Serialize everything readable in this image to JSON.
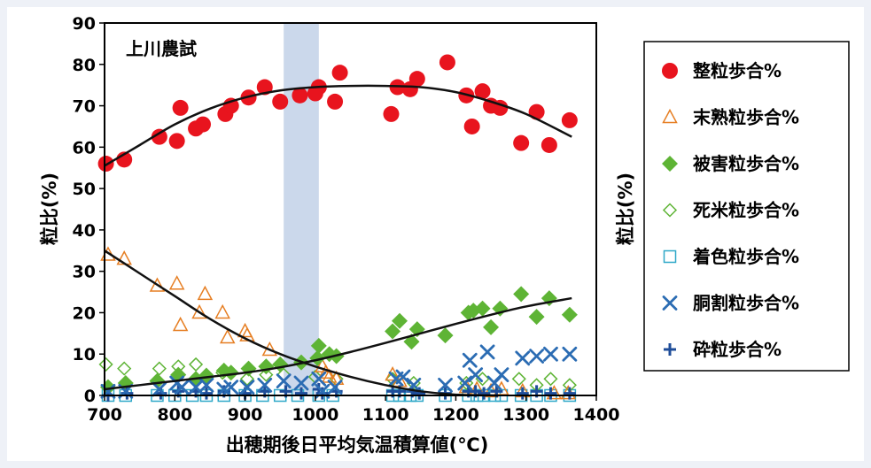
{
  "chart_data": {
    "type": "scatter",
    "annotation": "上川農試",
    "xlabel": "出穂期後日平均気温積算値(℃)",
    "ylabel": "粒比(%)",
    "ylabel_right": "粒比(%)",
    "xlim": [
      700,
      1400
    ],
    "ylim": [
      0,
      90
    ],
    "x_ticks": [
      700,
      800,
      900,
      1000,
      1100,
      1200,
      1300,
      1400
    ],
    "y_ticks": [
      0,
      10,
      20,
      30,
      40,
      50,
      60,
      70,
      80,
      90
    ],
    "highlight_band": [
      955,
      1005
    ],
    "series": [
      {
        "name": "整粒歩合%",
        "marker": "circle",
        "color": "#e8141e",
        "points": [
          [
            702,
            56
          ],
          [
            728,
            57
          ],
          [
            778,
            62.5
          ],
          [
            803,
            61.5
          ],
          [
            808,
            69.5
          ],
          [
            830,
            64.5
          ],
          [
            840,
            65.5
          ],
          [
            872,
            68
          ],
          [
            880,
            70
          ],
          [
            905,
            72
          ],
          [
            928,
            74.5
          ],
          [
            950,
            71
          ],
          [
            978,
            72.5
          ],
          [
            1000,
            73
          ],
          [
            1005,
            74.5
          ],
          [
            1028,
            71
          ],
          [
            1035,
            78
          ],
          [
            1108,
            68
          ],
          [
            1117,
            74.5
          ],
          [
            1135,
            74
          ],
          [
            1145,
            76.5
          ],
          [
            1188,
            80.5
          ],
          [
            1215,
            72.5
          ],
          [
            1223,
            65
          ],
          [
            1238,
            73.5
          ],
          [
            1250,
            70
          ],
          [
            1263,
            69.5
          ],
          [
            1293,
            61
          ],
          [
            1315,
            68.5
          ],
          [
            1333,
            60.5
          ],
          [
            1362,
            66.5
          ]
        ]
      },
      {
        "name": "末熟粒歩合%",
        "marker": "triangle-open",
        "color": "#e67e22",
        "points": [
          [
            705,
            34
          ],
          [
            728,
            33
          ],
          [
            775,
            26.5
          ],
          [
            803,
            27
          ],
          [
            808,
            17
          ],
          [
            835,
            20
          ],
          [
            843,
            24.5
          ],
          [
            868,
            20
          ],
          [
            875,
            14
          ],
          [
            900,
            15.5
          ],
          [
            903,
            14.5
          ],
          [
            935,
            11
          ],
          [
            1010,
            7
          ],
          [
            1015,
            5.5
          ],
          [
            1020,
            4.5
          ],
          [
            1030,
            4
          ],
          [
            1110,
            5
          ],
          [
            1120,
            3.5
          ],
          [
            1215,
            2
          ],
          [
            1230,
            1.5
          ],
          [
            1250,
            1
          ],
          [
            1265,
            1.5
          ],
          [
            1295,
            1
          ],
          [
            1340,
            0.5
          ],
          [
            1360,
            0.5
          ]
        ]
      },
      {
        "name": "被害粒歩合%",
        "marker": "diamond",
        "color": "#5eb435",
        "points": [
          [
            705,
            2
          ],
          [
            730,
            3
          ],
          [
            775,
            3.5
          ],
          [
            805,
            5
          ],
          [
            830,
            4
          ],
          [
            845,
            4.5
          ],
          [
            870,
            6
          ],
          [
            880,
            5.5
          ],
          [
            905,
            6.5
          ],
          [
            930,
            7
          ],
          [
            950,
            7.5
          ],
          [
            980,
            8
          ],
          [
            1003,
            9
          ],
          [
            1005,
            12
          ],
          [
            1020,
            10
          ],
          [
            1030,
            9.5
          ],
          [
            1110,
            15.5
          ],
          [
            1120,
            18
          ],
          [
            1137,
            13
          ],
          [
            1145,
            16
          ],
          [
            1185,
            14.5
          ],
          [
            1218,
            20
          ],
          [
            1225,
            20.5
          ],
          [
            1238,
            21
          ],
          [
            1250,
            16.5
          ],
          [
            1263,
            21
          ],
          [
            1293,
            24.5
          ],
          [
            1315,
            19
          ],
          [
            1333,
            23.5
          ],
          [
            1362,
            19.5
          ]
        ]
      },
      {
        "name": "死米粒歩合%",
        "marker": "diamond-open",
        "color": "#5eb435",
        "points": [
          [
            702,
            7.5
          ],
          [
            728,
            6.5
          ],
          [
            778,
            6.5
          ],
          [
            805,
            7
          ],
          [
            830,
            7.5
          ],
          [
            845,
            5
          ],
          [
            868,
            5.5
          ],
          [
            903,
            4
          ],
          [
            930,
            5
          ],
          [
            955,
            5
          ],
          [
            1000,
            4.5
          ],
          [
            1030,
            4
          ],
          [
            1110,
            4
          ],
          [
            1140,
            3
          ],
          [
            1215,
            3
          ],
          [
            1238,
            4
          ],
          [
            1290,
            4
          ],
          [
            1315,
            2.5
          ],
          [
            1335,
            4
          ],
          [
            1362,
            2.5
          ]
        ]
      },
      {
        "name": "着色粒歩合%",
        "marker": "square-open",
        "color": "#2fa8c8",
        "points": [
          [
            705,
            0
          ],
          [
            730,
            0
          ],
          [
            775,
            0
          ],
          [
            800,
            0
          ],
          [
            825,
            0
          ],
          [
            845,
            0
          ],
          [
            870,
            0
          ],
          [
            900,
            0
          ],
          [
            925,
            0
          ],
          [
            950,
            0
          ],
          [
            975,
            0
          ],
          [
            1005,
            0
          ],
          [
            1025,
            0
          ],
          [
            1110,
            0
          ],
          [
            1120,
            0
          ],
          [
            1135,
            0
          ],
          [
            1145,
            0
          ],
          [
            1185,
            0
          ],
          [
            1218,
            0
          ],
          [
            1230,
            0
          ],
          [
            1240,
            0
          ],
          [
            1255,
            0
          ],
          [
            1265,
            0
          ],
          [
            1293,
            0
          ],
          [
            1315,
            0
          ],
          [
            1335,
            0
          ],
          [
            1362,
            0
          ]
        ]
      },
      {
        "name": "胴割粒歩合%",
        "marker": "x",
        "color": "#2b6cb3",
        "points": [
          [
            705,
            1
          ],
          [
            730,
            1
          ],
          [
            778,
            1.5
          ],
          [
            803,
            3
          ],
          [
            810,
            2
          ],
          [
            830,
            2
          ],
          [
            845,
            2.5
          ],
          [
            870,
            1.5
          ],
          [
            880,
            2
          ],
          [
            903,
            2
          ],
          [
            928,
            2.5
          ],
          [
            955,
            3.5
          ],
          [
            980,
            3
          ],
          [
            1005,
            4
          ],
          [
            1010,
            1
          ],
          [
            1028,
            2
          ],
          [
            1115,
            4
          ],
          [
            1125,
            4.5
          ],
          [
            1140,
            2.5
          ],
          [
            1185,
            2.5
          ],
          [
            1213,
            3
          ],
          [
            1220,
            8.5
          ],
          [
            1228,
            5
          ],
          [
            1245,
            10.5
          ],
          [
            1255,
            3
          ],
          [
            1265,
            5
          ],
          [
            1295,
            9
          ],
          [
            1315,
            9.5
          ],
          [
            1335,
            10
          ],
          [
            1362,
            10
          ]
        ]
      },
      {
        "name": "砕粒歩合%",
        "marker": "plus",
        "color": "#1f4d99",
        "points": [
          [
            705,
            0
          ],
          [
            732,
            0.5
          ],
          [
            780,
            0.5
          ],
          [
            805,
            1
          ],
          [
            830,
            1
          ],
          [
            845,
            0.5
          ],
          [
            870,
            1
          ],
          [
            900,
            0.5
          ],
          [
            928,
            1
          ],
          [
            958,
            1
          ],
          [
            980,
            0.5
          ],
          [
            1005,
            1.5
          ],
          [
            1010,
            0.5
          ],
          [
            1030,
            1
          ],
          [
            1110,
            1
          ],
          [
            1120,
            1
          ],
          [
            1138,
            1
          ],
          [
            1148,
            0.5
          ],
          [
            1185,
            0.5
          ],
          [
            1218,
            1
          ],
          [
            1228,
            1
          ],
          [
            1240,
            0.5
          ],
          [
            1258,
            1
          ],
          [
            1295,
            0.5
          ],
          [
            1315,
            1
          ],
          [
            1335,
            0.5
          ],
          [
            1362,
            0.5
          ]
        ]
      }
    ],
    "trendlines": [
      {
        "series": "整粒歩合%",
        "points": [
          [
            700,
            55.5
          ],
          [
            750,
            60.5
          ],
          [
            800,
            65.5
          ],
          [
            850,
            69.3
          ],
          [
            900,
            72
          ],
          [
            950,
            73.7
          ],
          [
            1000,
            74.5
          ],
          [
            1050,
            74.8
          ],
          [
            1100,
            74.8
          ],
          [
            1150,
            74.5
          ],
          [
            1200,
            73.3
          ],
          [
            1250,
            71
          ],
          [
            1300,
            68
          ],
          [
            1365,
            62.5
          ]
        ]
      },
      {
        "series": "末熟粒歩合%",
        "points": [
          [
            700,
            35
          ],
          [
            750,
            29.5
          ],
          [
            800,
            24
          ],
          [
            850,
            18.5
          ],
          [
            900,
            13.8
          ],
          [
            950,
            10
          ],
          [
            1000,
            7
          ],
          [
            1050,
            4.5
          ],
          [
            1100,
            2.5
          ],
          [
            1150,
            1
          ],
          [
            1200,
            0.2
          ],
          [
            1260,
            0
          ]
        ]
      },
      {
        "series": "被害粒歩合%",
        "points": [
          [
            700,
            1.5
          ],
          [
            750,
            2.5
          ],
          [
            800,
            3.5
          ],
          [
            850,
            4.5
          ],
          [
            900,
            5.5
          ],
          [
            950,
            6.8
          ],
          [
            1000,
            8.5
          ],
          [
            1050,
            10.5
          ],
          [
            1100,
            12.7
          ],
          [
            1150,
            15
          ],
          [
            1200,
            17.3
          ],
          [
            1250,
            19.5
          ],
          [
            1300,
            21.5
          ],
          [
            1365,
            23.5
          ]
        ]
      }
    ]
  }
}
